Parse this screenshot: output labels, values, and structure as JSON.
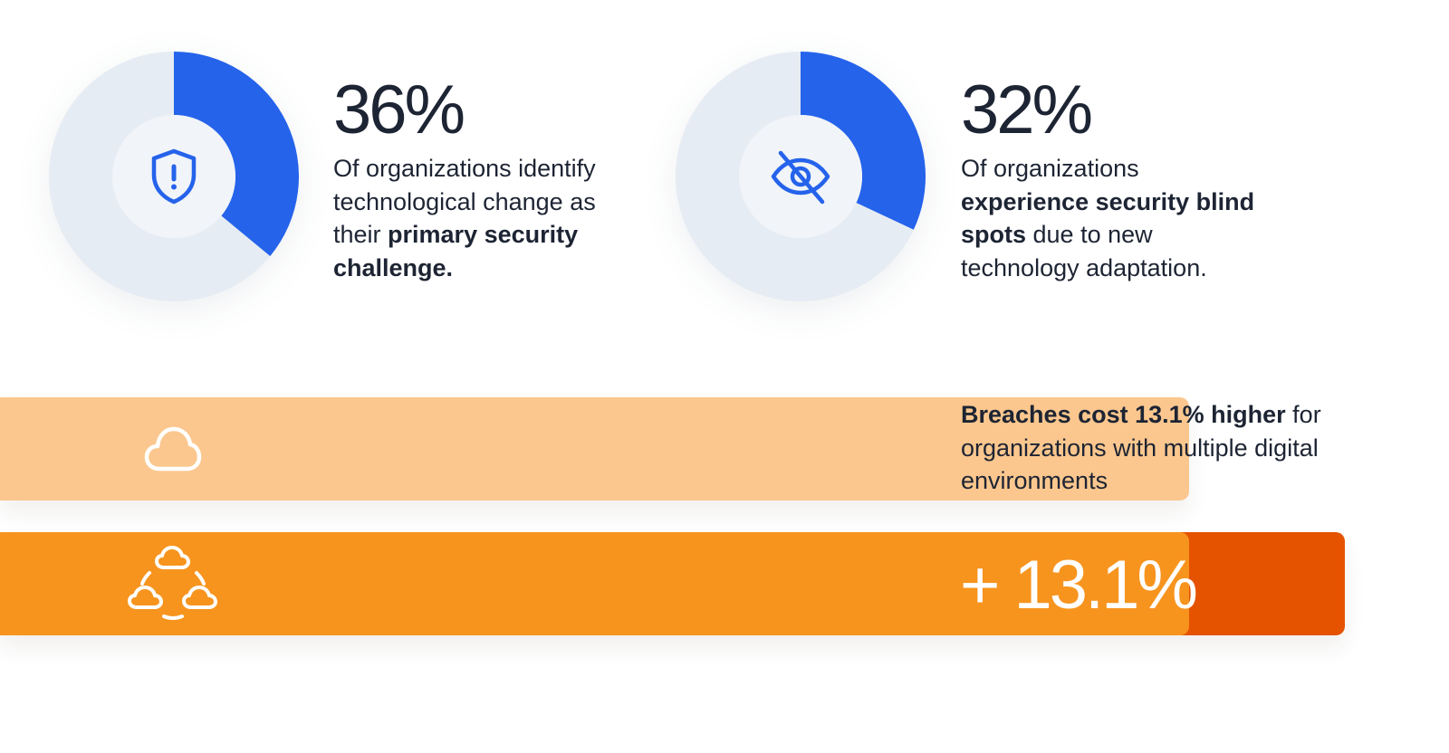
{
  "colors": {
    "accent_blue": "#2563eb",
    "ring_track": "#e6ecf4",
    "inner_circle": "#f1f4f8",
    "bar_single": "#fbc78e",
    "bar_multi": "#f7941e",
    "bar_increase": "#e55300",
    "text": "#1d2433"
  },
  "chart_data": [
    {
      "type": "pie",
      "subtype": "donut",
      "values": [
        36,
        64
      ],
      "highlight_value": 36,
      "value_label": "36%",
      "icon": "shield-alert-icon",
      "text_parts": [
        {
          "text": "Of organizations identify technological change as their ",
          "bold": false
        },
        {
          "text": "primary security challenge.",
          "bold": true
        }
      ]
    },
    {
      "type": "pie",
      "subtype": "donut",
      "values": [
        32,
        68
      ],
      "highlight_value": 32,
      "value_label": "32%",
      "icon": "eye-off-icon",
      "text_parts": [
        {
          "text": "Of organizations ",
          "bold": false
        },
        {
          "text": "experience security blind spots",
          "bold": true
        },
        {
          "text": " due to new technology adaptation.",
          "bold": false
        }
      ]
    },
    {
      "type": "bar",
      "orientation": "horizontal",
      "categories": [
        "single digital environment",
        "multiple digital environments"
      ],
      "category_icons": [
        "cloud-icon",
        "multi-cloud-icon"
      ],
      "values": [
        100,
        113.1
      ],
      "increase_label": "+ 13.1%",
      "text_parts": [
        {
          "text": "Breaches cost 13.1% higher",
          "bold": true
        },
        {
          "text": " for organizations with multiple digital environments",
          "bold": false
        }
      ]
    }
  ]
}
